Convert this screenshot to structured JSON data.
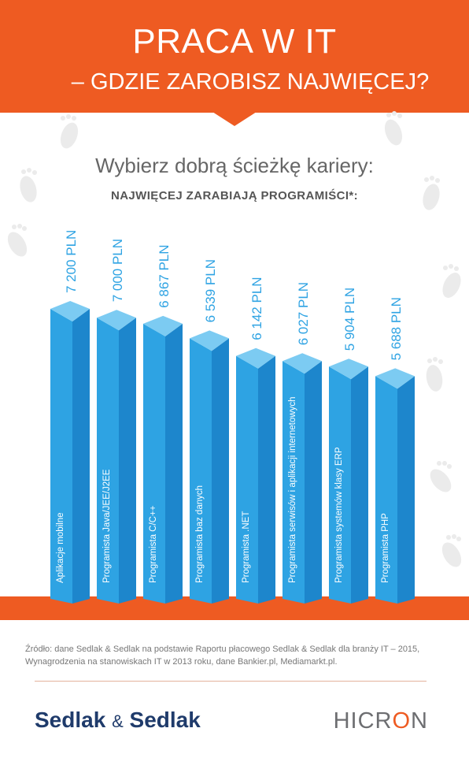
{
  "header": {
    "title": "PRACA W IT",
    "subtitle": "– GDZIE ZAROBISZ NAJWIĘCEJ?"
  },
  "intro": {
    "lead": "Wybierz dobrą ścieżkę kariery:",
    "sublead": "NAJWIĘCEJ ZARABIAJĄ PROGRAMIŚCI*:"
  },
  "chart_data": {
    "type": "bar",
    "categories": [
      "Aplikacje mobilne",
      "Programista Java/JEE/J2EE",
      "Programista C/C++",
      "Programista baz danych",
      "Programista .NET",
      "Programista serwisów i aplikacji internetowych",
      "Programista systemów klasy ERP",
      "Programista PHP"
    ],
    "values": [
      7200,
      7000,
      6867,
      6539,
      6142,
      6027,
      5904,
      5688
    ],
    "value_labels": [
      "7 200 PLN",
      "7 000 PLN",
      "6 867 PLN",
      "6 539 PLN",
      "6 142 PLN",
      "6 027 PLN",
      "5 904 PLN",
      "5 688 PLN"
    ],
    "unit": "PLN",
    "colors": {
      "bar_front": "#2ea3e3",
      "bar_side": "#1d86cc",
      "bar_top": "#7ccbf2",
      "value_text": "#2ea3e3"
    }
  },
  "source": {
    "text": "Źródło: dane Sedlak & Sedlak na podstawie Raportu płacowego Sedlak & Sedlak dla branży IT – 2015, Wynagrodzenia na stanowiskach IT w 2013 roku, dane Bankier.pl, Mediamarkt.pl."
  },
  "footer": {
    "brand_left_a": "Sedlak",
    "brand_left_amp": "&",
    "brand_left_b": "Sedlak",
    "brand_right_a": "HICR",
    "brand_right_o": "O",
    "brand_right_b": "N"
  },
  "colors": {
    "accent": "#ee5b22",
    "navy": "#1f3b6b"
  },
  "decor": {
    "footprint_icon": "footprint-icon"
  }
}
